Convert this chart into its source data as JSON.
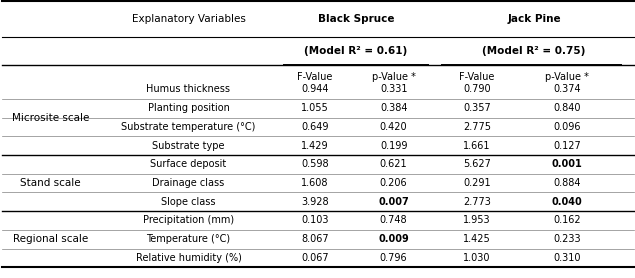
{
  "scale_labels": [
    "Microsite scale",
    "Stand scale",
    "Regional scale"
  ],
  "scale_rows": [
    4,
    3,
    3
  ],
  "row_labels": [
    "Humus thickness",
    "Planting position",
    "Substrate temperature (°C)",
    "Substrate type",
    "Surface deposit",
    "Drainage class",
    "Slope class",
    "Precipitation (mm)",
    "Temperature (°C)",
    "Relative humidity (%)"
  ],
  "bs_fval": [
    "0.944",
    "1.055",
    "0.649",
    "1.429",
    "0.598",
    "1.608",
    "3.928",
    "0.103",
    "8.067",
    "0.067"
  ],
  "bs_pval": [
    "0.331",
    "0.384",
    "0.420",
    "0.199",
    "0.621",
    "0.206",
    "0.007",
    "0.748",
    "0.009",
    "0.796"
  ],
  "bs_pval_bold": [
    false,
    false,
    false,
    false,
    false,
    false,
    true,
    false,
    true,
    false
  ],
  "jp_fval": [
    "0.790",
    "0.357",
    "2.775",
    "1.661",
    "5.627",
    "0.291",
    "2.773",
    "1.953",
    "1.425",
    "1.030"
  ],
  "jp_pval": [
    "0.374",
    "0.840",
    "0.096",
    "0.127",
    "0.001",
    "0.884",
    "0.040",
    "0.162",
    "0.233",
    "0.310"
  ],
  "jp_pval_bold": [
    false,
    false,
    false,
    false,
    true,
    false,
    true,
    false,
    false,
    false
  ],
  "header1_bs": "Black Spruce",
  "header2_bs": "(Model R² = 0.61)",
  "header1_jp": "Jack Pine",
  "header2_jp": "(Model R² = 0.75)",
  "col_expl": "Explanatory Variables",
  "col_fval": "F-Value",
  "col_pval": "p-Value *",
  "background": "#ffffff",
  "header_bg": "#f0f0f0"
}
